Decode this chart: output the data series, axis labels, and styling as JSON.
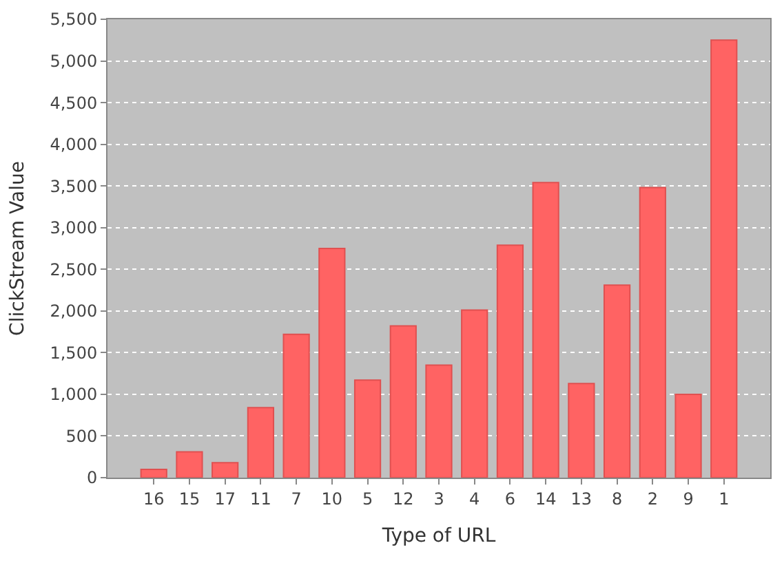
{
  "chart_data": {
    "type": "bar",
    "xlabel": "Type of URL",
    "ylabel": "ClickStream Value",
    "categories": [
      "16",
      "15",
      "17",
      "11",
      "7",
      "10",
      "5",
      "12",
      "3",
      "4",
      "6",
      "14",
      "13",
      "8",
      "2",
      "9",
      "1"
    ],
    "values": [
      100,
      310,
      180,
      840,
      1720,
      2750,
      1170,
      1820,
      1350,
      2010,
      2790,
      3540,
      1130,
      2310,
      3480,
      1000,
      5250
    ],
    "color": "#ff6363",
    "ylim": [
      0,
      5500
    ],
    "yticks": [
      {
        "value": 0,
        "label": "0"
      },
      {
        "value": 500,
        "label": "500"
      },
      {
        "value": 1000,
        "label": "1,000"
      },
      {
        "value": 1500,
        "label": "1,500"
      },
      {
        "value": 2000,
        "label": "2,000"
      },
      {
        "value": 2500,
        "label": "2,500"
      },
      {
        "value": 3000,
        "label": "3,000"
      },
      {
        "value": 3500,
        "label": "3,500"
      },
      {
        "value": 4000,
        "label": "4,000"
      },
      {
        "value": 4500,
        "label": "4,500"
      },
      {
        "value": 5000,
        "label": "5,000"
      },
      {
        "value": 5500,
        "label": "5,500"
      }
    ],
    "grid": "y"
  }
}
